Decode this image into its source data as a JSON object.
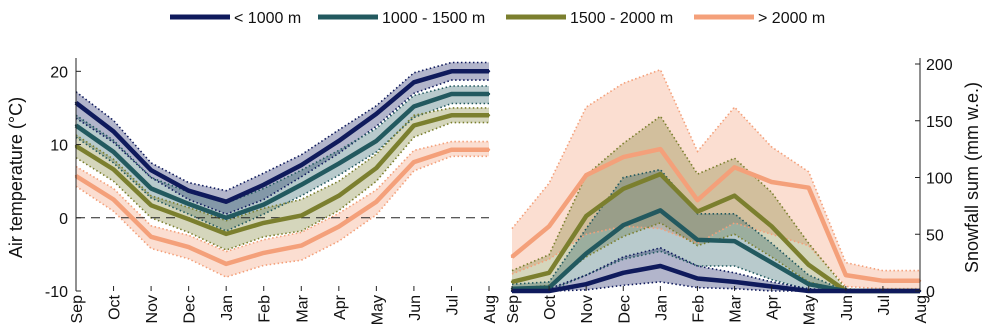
{
  "legend": {
    "placement": "top-center",
    "items": [
      {
        "label": "< 1000 m",
        "color": "#0f1a5c"
      },
      {
        "label": "1000 - 1500 m",
        "color": "#22595f"
      },
      {
        "label": "1500 - 2000 m",
        "color": "#7b7f2e"
      },
      {
        "label": "> 2000 m",
        "color": "#f4a07a"
      }
    ]
  },
  "chart_data": [
    {
      "type": "line",
      "title": "",
      "xlabel": "",
      "ylabel": "Air temperature (°C)",
      "ylim": [
        -10,
        21
      ],
      "yticks": [
        -10,
        0,
        10,
        20
      ],
      "grid": false,
      "reference_line": {
        "y": 0,
        "style": "dashed"
      },
      "categories": [
        "Sep",
        "Oct",
        "Nov",
        "Dec",
        "Jan",
        "Feb",
        "Mar",
        "Apr",
        "May",
        "Jun",
        "Jul",
        "Aug"
      ],
      "band_style": "shaded range with dotted edges",
      "series": [
        {
          "name": "< 1000 m",
          "color": "#0f1a5c",
          "values": [
            15.7,
            11.8,
            6.5,
            3.7,
            2.2,
            4.5,
            7.2,
            10.5,
            14.2,
            18.5,
            20.0,
            20.0
          ],
          "upper": [
            17.2,
            13.3,
            7.5,
            4.8,
            3.7,
            6.1,
            8.6,
            12.0,
            15.3,
            19.8,
            21.2,
            21.2
          ],
          "lower": [
            13.6,
            10.3,
            5.5,
            2.5,
            0.5,
            2.5,
            5.6,
            8.8,
            12.5,
            17.0,
            18.8,
            18.8
          ]
        },
        {
          "name": "1000 - 1500 m",
          "color": "#22595f",
          "values": [
            12.6,
            9.0,
            4.0,
            1.9,
            0.0,
            1.8,
            4.5,
            7.4,
            10.5,
            15.2,
            16.9,
            16.9
          ],
          "upper": [
            14.0,
            10.6,
            5.5,
            3.5,
            2.0,
            4.0,
            6.5,
            9.2,
            12.2,
            16.7,
            18.0,
            18.0
          ],
          "lower": [
            11.0,
            7.5,
            2.7,
            0.5,
            -1.8,
            0.5,
            3.0,
            5.8,
            9.0,
            13.7,
            15.6,
            15.6
          ]
        },
        {
          "name": "1500 - 2000 m",
          "color": "#7b7f2e",
          "values": [
            9.8,
            6.6,
            1.7,
            -0.2,
            -2.2,
            -0.7,
            0.3,
            3.0,
            6.8,
            12.6,
            14.0,
            14.0
          ],
          "upper": [
            11.3,
            8.0,
            3.0,
            1.4,
            -0.4,
            1.3,
            2.5,
            5.0,
            8.7,
            14.0,
            15.0,
            15.0
          ],
          "lower": [
            8.2,
            5.0,
            0.0,
            -2.0,
            -4.4,
            -2.6,
            -1.8,
            1.0,
            5.0,
            11.0,
            13.0,
            13.0
          ]
        },
        {
          "name": "> 2000 m",
          "color": "#f4a07a",
          "values": [
            5.7,
            2.5,
            -2.6,
            -4.0,
            -6.3,
            -4.8,
            -3.8,
            -1.2,
            2.2,
            7.6,
            9.3,
            9.3
          ],
          "upper": [
            7.0,
            4.0,
            -1.1,
            -2.4,
            -4.6,
            -3.0,
            -2.0,
            0.6,
            3.8,
            9.2,
            10.4,
            10.4
          ],
          "lower": [
            4.3,
            0.9,
            -4.2,
            -5.6,
            -8.1,
            -6.5,
            -5.8,
            -3.2,
            0.4,
            6.4,
            8.4,
            8.4
          ]
        }
      ]
    },
    {
      "type": "line",
      "title": "",
      "xlabel": "",
      "ylabel": "Snowfall sum (mm w.e.)",
      "y_axis_side": "right",
      "ylim": [
        0,
        200
      ],
      "yticks": [
        0,
        50,
        100,
        150,
        200
      ],
      "grid": false,
      "categories": [
        "Sep",
        "Oct",
        "Nov",
        "Dec",
        "Jan",
        "Feb",
        "Mar",
        "Apr",
        "May",
        "Jun",
        "Jul",
        "Aug"
      ],
      "band_style": "shaded range with dotted edges",
      "series": [
        {
          "name": "> 2000 m",
          "color": "#f4a07a",
          "values": [
            30,
            57,
            102,
            118,
            125,
            80,
            109,
            96,
            91,
            14,
            9,
            9
          ],
          "upper": [
            55,
            95,
            162,
            183,
            195,
            123,
            162,
            127,
            105,
            25,
            18,
            18
          ],
          "lower": [
            15,
            28,
            50,
            57,
            55,
            42,
            60,
            50,
            40,
            4,
            2,
            2
          ]
        },
        {
          "name": "1500 - 2000 m",
          "color": "#7b7f2e",
          "values": [
            8,
            16,
            66,
            90,
            103,
            70,
            84,
            57,
            23,
            0,
            0,
            0
          ],
          "upper": [
            18,
            32,
            102,
            130,
            154,
            103,
            117,
            87,
            42,
            2,
            0,
            0
          ],
          "lower": [
            2,
            5,
            30,
            48,
            60,
            40,
            50,
            30,
            8,
            0,
            0,
            0
          ]
        },
        {
          "name": "1000 - 1500 m",
          "color": "#22595f",
          "values": [
            2,
            3,
            33,
            58,
            71,
            45,
            44,
            25,
            6,
            0,
            0,
            0
          ],
          "upper": [
            6,
            8,
            55,
            100,
            107,
            68,
            68,
            42,
            14,
            0,
            0,
            0
          ],
          "lower": [
            0,
            0,
            14,
            28,
            35,
            22,
            22,
            10,
            1,
            0,
            0,
            0
          ]
        },
        {
          "name": "< 1000 m",
          "color": "#0f1a5c",
          "values": [
            0,
            0,
            6,
            16,
            22,
            11,
            8,
            4,
            0,
            0,
            0,
            0
          ],
          "upper": [
            2,
            2,
            14,
            30,
            38,
            22,
            16,
            8,
            2,
            0,
            0,
            0
          ],
          "lower": [
            0,
            0,
            1,
            5,
            8,
            3,
            2,
            0,
            0,
            0,
            0,
            0
          ]
        }
      ]
    }
  ]
}
